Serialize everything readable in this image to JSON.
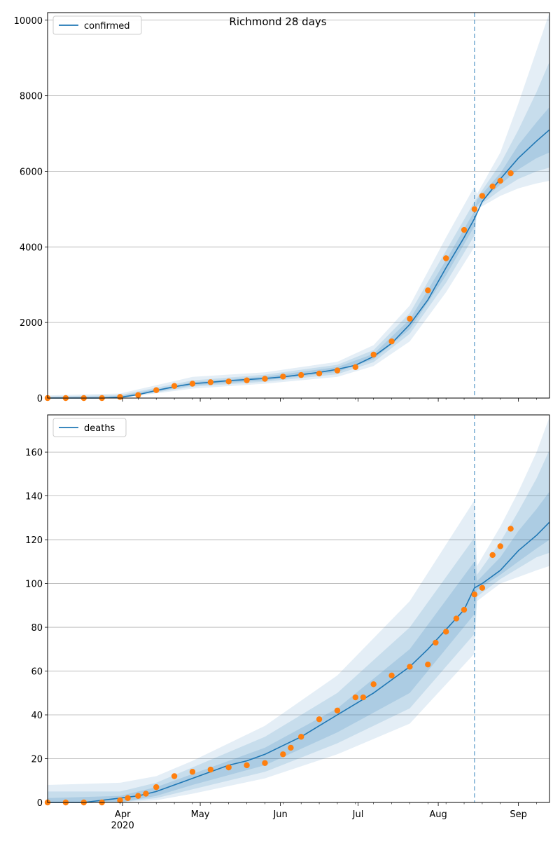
{
  "chart_data": [
    {
      "type": "line",
      "title": "Richmond 28 days",
      "xlabel": "",
      "ylabel": "",
      "ylim": [
        0,
        10200
      ],
      "y_ticks": [
        0,
        2000,
        4000,
        6000,
        8000,
        10000
      ],
      "x_ticks": [
        "Apr",
        "May",
        "Jun",
        "Jul",
        "Aug",
        "Sep"
      ],
      "x_year_label": "2020",
      "x_range": [
        "2020-03-03",
        "2020-09-13"
      ],
      "grid": true,
      "legend_position": "top-left",
      "forecast_start": "2020-08-15",
      "series": [
        {
          "name": "confirmed",
          "kind": "model-median",
          "color": "#1f77b4",
          "x": [
            "2020-03-03",
            "2020-03-10",
            "2020-03-17",
            "2020-03-24",
            "2020-03-31",
            "2020-04-07",
            "2020-04-14",
            "2020-04-21",
            "2020-04-28",
            "2020-05-05",
            "2020-05-12",
            "2020-05-19",
            "2020-05-26",
            "2020-06-02",
            "2020-06-09",
            "2020-06-16",
            "2020-06-23",
            "2020-06-30",
            "2020-07-07",
            "2020-07-14",
            "2020-07-21",
            "2020-07-28",
            "2020-08-04",
            "2020-08-11",
            "2020-08-15",
            "2020-08-18",
            "2020-08-25",
            "2020-09-01",
            "2020-09-08",
            "2020-09-13"
          ],
          "y": [
            0,
            0,
            0,
            0,
            20,
            90,
            200,
            300,
            380,
            420,
            460,
            490,
            520,
            560,
            620,
            680,
            760,
            870,
            1100,
            1450,
            1950,
            2600,
            3450,
            4250,
            4750,
            5200,
            5800,
            6350,
            6800,
            7100
          ]
        },
        {
          "name": "",
          "kind": "observed",
          "color": "#ff7f0e",
          "x": [
            "2020-03-03",
            "2020-03-10",
            "2020-03-17",
            "2020-03-24",
            "2020-03-31",
            "2020-04-07",
            "2020-04-14",
            "2020-04-21",
            "2020-04-28",
            "2020-05-05",
            "2020-05-12",
            "2020-05-19",
            "2020-05-26",
            "2020-06-02",
            "2020-06-09",
            "2020-06-16",
            "2020-06-23",
            "2020-06-30",
            "2020-07-07",
            "2020-07-14",
            "2020-07-21",
            "2020-07-28",
            "2020-08-04",
            "2020-08-11",
            "2020-08-15",
            "2020-08-18",
            "2020-08-22",
            "2020-08-25",
            "2020-08-29"
          ],
          "y": [
            0,
            0,
            0,
            0,
            30,
            80,
            210,
            320,
            380,
            420,
            440,
            470,
            510,
            570,
            610,
            650,
            730,
            820,
            1150,
            1500,
            2100,
            2850,
            3700,
            4450,
            5000,
            5350,
            5600,
            5750,
            5950
          ]
        }
      ],
      "bands": [
        {
          "color": "#1f77b4",
          "alpha": 0.12,
          "x": [
            "2020-03-03",
            "2020-03-31",
            "2020-04-28",
            "2020-05-26",
            "2020-06-23",
            "2020-07-07",
            "2020-07-21",
            "2020-08-04",
            "2020-08-15",
            "2020-08-16",
            "2020-08-25",
            "2020-09-01",
            "2020-09-08",
            "2020-09-13"
          ],
          "lower": [
            0,
            0,
            250,
            380,
            560,
            850,
            1500,
            2800,
            4000,
            5000,
            5350,
            5550,
            5680,
            5750
          ],
          "upper": [
            70,
            120,
            560,
            680,
            960,
            1400,
            2450,
            4250,
            5600,
            5400,
            6500,
            7800,
            9200,
            10200
          ]
        },
        {
          "color": "#1f77b4",
          "alpha": 0.14,
          "x": [
            "2020-03-03",
            "2020-03-31",
            "2020-04-28",
            "2020-05-26",
            "2020-06-23",
            "2020-07-07",
            "2020-07-21",
            "2020-08-04",
            "2020-08-15",
            "2020-08-16",
            "2020-08-25",
            "2020-09-01",
            "2020-09-08",
            "2020-09-13"
          ],
          "lower": [
            0,
            0,
            300,
            430,
            630,
            950,
            1700,
            3050,
            4300,
            5050,
            5500,
            5800,
            6000,
            6100
          ],
          "upper": [
            40,
            80,
            470,
            620,
            880,
            1270,
            2250,
            3900,
            5200,
            5300,
            6200,
            7100,
            8100,
            8900
          ]
        },
        {
          "color": "#1f77b4",
          "alpha": 0.16,
          "x": [
            "2020-03-03",
            "2020-03-31",
            "2020-04-28",
            "2020-05-26",
            "2020-06-23",
            "2020-07-07",
            "2020-07-21",
            "2020-08-04",
            "2020-08-15",
            "2020-08-16",
            "2020-08-25",
            "2020-09-01",
            "2020-09-08",
            "2020-09-13"
          ],
          "lower": [
            0,
            5,
            340,
            470,
            690,
            1030,
            1820,
            3250,
            4550,
            5100,
            5650,
            6050,
            6350,
            6500
          ],
          "upper": [
            20,
            50,
            420,
            570,
            820,
            1170,
            2080,
            3650,
            4950,
            5250,
            5950,
            6700,
            7300,
            7700
          ]
        }
      ]
    },
    {
      "type": "line",
      "title": "",
      "xlabel": "",
      "ylabel": "",
      "ylim": [
        0,
        177
      ],
      "y_ticks": [
        0,
        20,
        40,
        60,
        80,
        100,
        120,
        140,
        160
      ],
      "x_ticks": [
        "Apr",
        "May",
        "Jun",
        "Jul",
        "Aug",
        "Sep"
      ],
      "x_year_label": "2020",
      "x_range": [
        "2020-03-03",
        "2020-09-13"
      ],
      "grid": true,
      "legend_position": "top-left",
      "forecast_start": "2020-08-15",
      "series": [
        {
          "name": "deaths",
          "kind": "model-median",
          "color": "#1f77b4",
          "x": [
            "2020-03-03",
            "2020-03-10",
            "2020-03-17",
            "2020-03-24",
            "2020-03-31",
            "2020-04-07",
            "2020-04-14",
            "2020-04-21",
            "2020-04-28",
            "2020-05-05",
            "2020-05-12",
            "2020-05-19",
            "2020-05-26",
            "2020-06-02",
            "2020-06-09",
            "2020-06-16",
            "2020-06-23",
            "2020-06-30",
            "2020-07-07",
            "2020-07-14",
            "2020-07-21",
            "2020-07-28",
            "2020-08-04",
            "2020-08-11",
            "2020-08-15",
            "2020-08-18",
            "2020-08-25",
            "2020-09-01",
            "2020-09-08",
            "2020-09-13"
          ],
          "y": [
            0,
            0,
            0,
            1,
            2,
            3,
            5,
            8,
            11,
            14,
            17,
            19,
            22,
            26,
            30,
            35,
            40,
            45,
            50,
            56,
            62,
            70,
            79,
            88,
            98,
            100,
            106,
            115,
            122,
            128
          ]
        },
        {
          "name": "",
          "kind": "observed",
          "color": "#ff7f0e",
          "x": [
            "2020-03-03",
            "2020-03-10",
            "2020-03-17",
            "2020-03-24",
            "2020-03-31",
            "2020-04-03",
            "2020-04-07",
            "2020-04-10",
            "2020-04-14",
            "2020-04-21",
            "2020-04-28",
            "2020-05-05",
            "2020-05-12",
            "2020-05-19",
            "2020-05-26",
            "2020-06-02",
            "2020-06-05",
            "2020-06-09",
            "2020-06-16",
            "2020-06-23",
            "2020-06-30",
            "2020-07-03",
            "2020-07-07",
            "2020-07-14",
            "2020-07-21",
            "2020-07-28",
            "2020-07-31",
            "2020-08-04",
            "2020-08-08",
            "2020-08-11",
            "2020-08-15",
            "2020-08-18",
            "2020-08-22",
            "2020-08-25",
            "2020-08-29"
          ],
          "y": [
            0,
            0,
            0,
            0,
            1,
            2,
            3,
            4,
            7,
            12,
            14,
            15,
            16,
            17,
            18,
            22,
            25,
            30,
            38,
            42,
            48,
            48,
            54,
            58,
            62,
            63,
            73,
            78,
            84,
            88,
            95,
            98,
            113,
            117,
            125
          ]
        }
      ],
      "bands": [
        {
          "color": "#1f77b4",
          "alpha": 0.12,
          "x": [
            "2020-03-03",
            "2020-03-31",
            "2020-04-14",
            "2020-04-28",
            "2020-05-26",
            "2020-06-23",
            "2020-07-21",
            "2020-08-15",
            "2020-08-16",
            "2020-08-25",
            "2020-09-01",
            "2020-09-08",
            "2020-09-13"
          ],
          "lower": [
            0,
            0,
            1,
            4,
            11,
            22,
            36,
            68,
            92,
            100,
            103,
            106,
            108
          ],
          "upper": [
            8,
            9,
            12,
            19,
            35,
            58,
            92,
            138,
            108,
            126,
            142,
            160,
            176
          ]
        },
        {
          "color": "#1f77b4",
          "alpha": 0.14,
          "x": [
            "2020-03-03",
            "2020-03-31",
            "2020-04-14",
            "2020-04-28",
            "2020-05-26",
            "2020-06-23",
            "2020-07-21",
            "2020-08-15",
            "2020-08-16",
            "2020-08-25",
            "2020-09-01",
            "2020-09-08",
            "2020-09-13"
          ],
          "lower": [
            0,
            0,
            2,
            6,
            14,
            27,
            43,
            77,
            94,
            102,
            107,
            112,
            114
          ],
          "upper": [
            5,
            5,
            9,
            16,
            30,
            50,
            80,
            121,
            104,
            119,
            133,
            148,
            161
          ]
        },
        {
          "color": "#1f77b4",
          "alpha": 0.16,
          "x": [
            "2020-03-03",
            "2020-03-31",
            "2020-04-14",
            "2020-04-28",
            "2020-05-26",
            "2020-06-23",
            "2020-07-21",
            "2020-08-15",
            "2020-08-16",
            "2020-08-25",
            "2020-09-01",
            "2020-09-08",
            "2020-09-13"
          ],
          "lower": [
            0,
            0,
            3,
            8,
            17,
            32,
            50,
            86,
            97,
            104,
            110,
            116,
            120
          ],
          "upper": [
            2,
            3,
            7,
            13,
            25,
            43,
            70,
            110,
            101,
            112,
            124,
            134,
            142
          ]
        }
      ]
    }
  ]
}
